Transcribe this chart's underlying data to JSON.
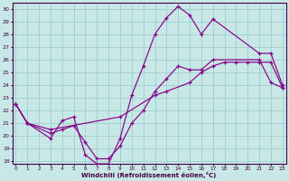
{
  "xlabel": "Windchill (Refroidissement éolien,°C)",
  "bg_color": "#c8e8e8",
  "grid_color": "#9ecece",
  "line_color": "#880088",
  "xlim": [
    -0.3,
    23.3
  ],
  "ylim": [
    17.8,
    30.5
  ],
  "xticks": [
    0,
    1,
    2,
    3,
    4,
    5,
    6,
    7,
    8,
    9,
    10,
    11,
    12,
    13,
    14,
    15,
    16,
    17,
    18,
    19,
    20,
    21,
    22,
    23
  ],
  "yticks": [
    18,
    19,
    20,
    21,
    22,
    23,
    24,
    25,
    26,
    27,
    28,
    29,
    30
  ],
  "line1_x": [
    0,
    1,
    3,
    4,
    5,
    6,
    7,
    8,
    9,
    10,
    11,
    12,
    13,
    14,
    15,
    16,
    17,
    21,
    22,
    23
  ],
  "line1_y": [
    22.5,
    21.0,
    19.8,
    21.2,
    21.5,
    18.5,
    17.8,
    17.8,
    19.8,
    23.2,
    25.5,
    28.0,
    29.3,
    30.2,
    29.5,
    28.0,
    29.2,
    26.5,
    26.5,
    24.0
  ],
  "line2_x": [
    0,
    1,
    3,
    9,
    12,
    13,
    15,
    16,
    17,
    18,
    19,
    20,
    21,
    22,
    23
  ],
  "line2_y": [
    22.5,
    21.0,
    20.5,
    21.5,
    23.2,
    23.5,
    24.2,
    25.0,
    25.5,
    25.8,
    25.8,
    25.8,
    25.8,
    25.8,
    23.8
  ],
  "line3_x": [
    0,
    1,
    3,
    4,
    5,
    6,
    7,
    8,
    9,
    10,
    11,
    12,
    13,
    14,
    15,
    16,
    17,
    21,
    22,
    23
  ],
  "line3_y": [
    22.5,
    21.0,
    20.2,
    20.5,
    20.8,
    19.5,
    18.2,
    18.2,
    19.2,
    21.0,
    22.0,
    23.5,
    24.5,
    25.5,
    25.2,
    25.2,
    26.0,
    26.0,
    24.2,
    23.8
  ]
}
